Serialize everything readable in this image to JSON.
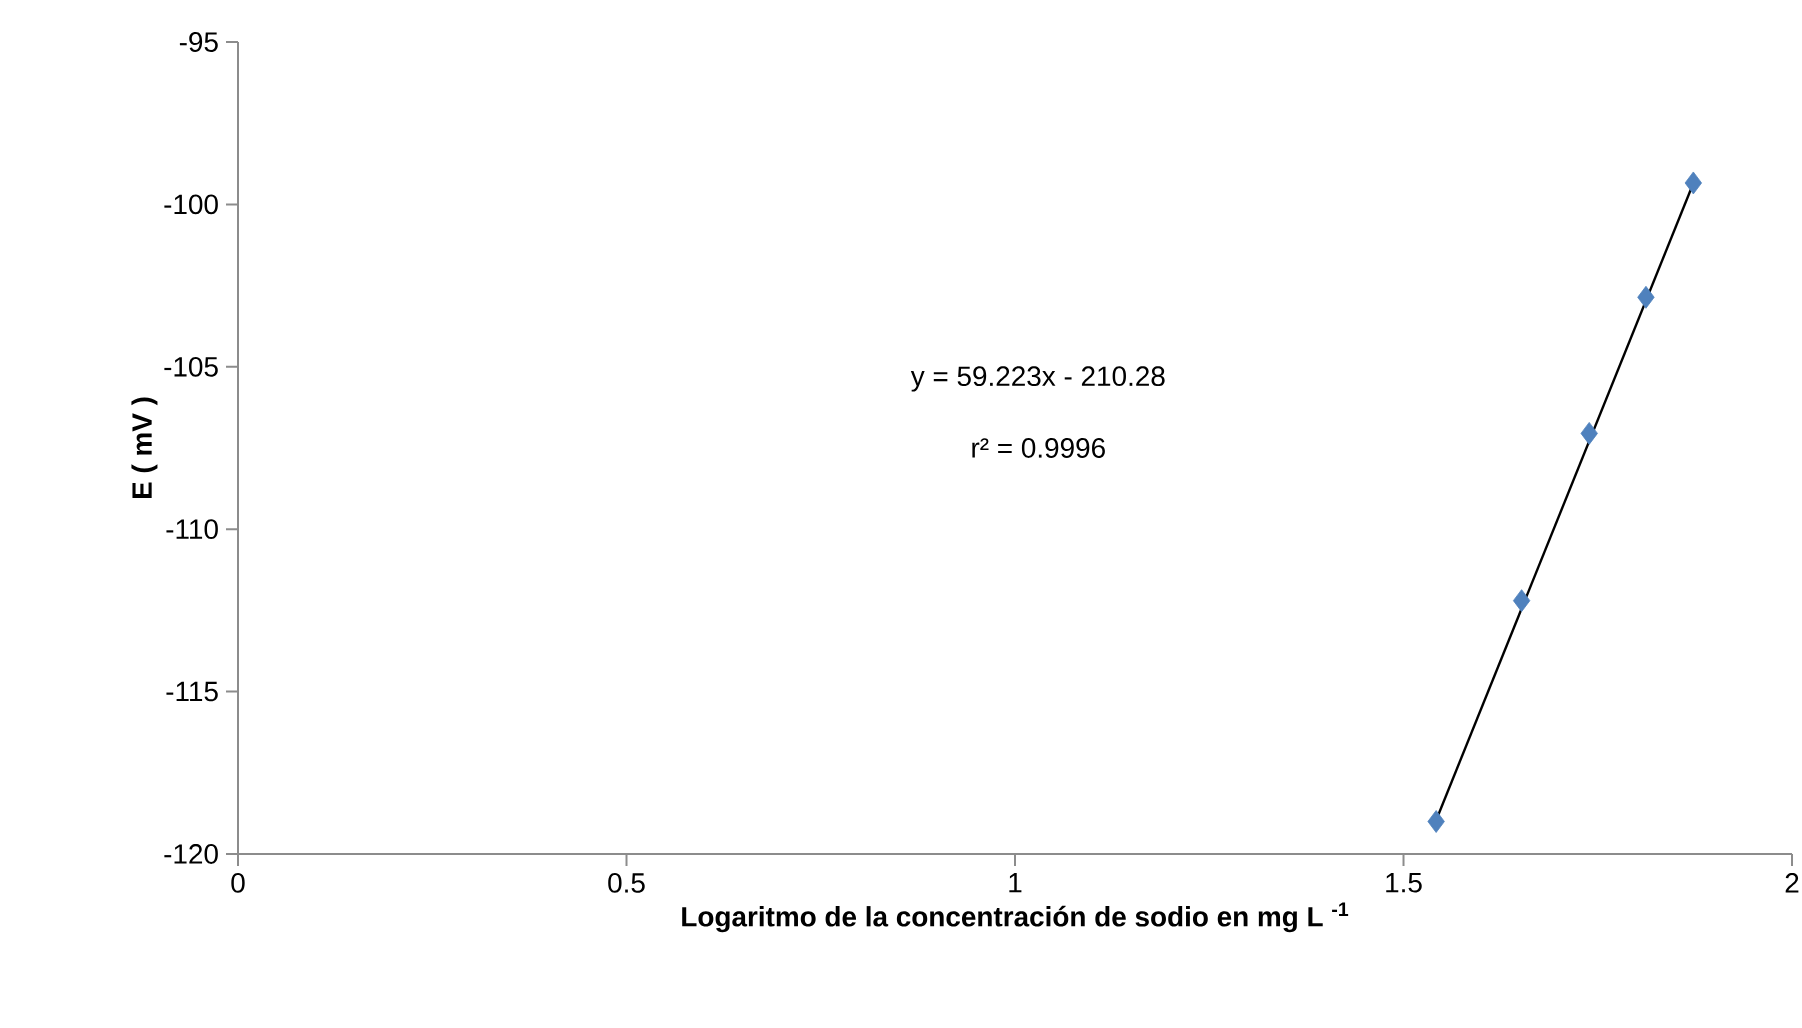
{
  "chart_data": {
    "type": "scatter",
    "xlabel": "Logaritmo de la concentración de sodio en mg L $^{-1}$",
    "ylabel": "E ( mV )",
    "annotations": [
      "y = 59.223x - 210.28",
      "r² = 0.9996"
    ],
    "xlim": [
      0,
      2
    ],
    "xticks": [
      0,
      0.5,
      1,
      1.5,
      2
    ],
    "ylim": [
      -120,
      -95
    ],
    "yticks": [
      -120,
      -115,
      -110,
      -105,
      -100,
      -95
    ],
    "grid": false,
    "series": [
      {
        "color": "#4f81bd",
        "marker": "diamond",
        "x": [
          1.542,
          1.652,
          1.739,
          1.812,
          1.873
        ],
        "values": [
          -119.0,
          -112.2,
          -107.05,
          -102.86,
          -99.34
        ]
      },
      {
        "type": "line",
        "color": "#000000",
        "marker": "none",
        "line_style": "solid",
        "x": [
          1.542,
          1.873
        ],
        "values": [
          -118.96,
          -99.35
        ]
      }
    ]
  }
}
